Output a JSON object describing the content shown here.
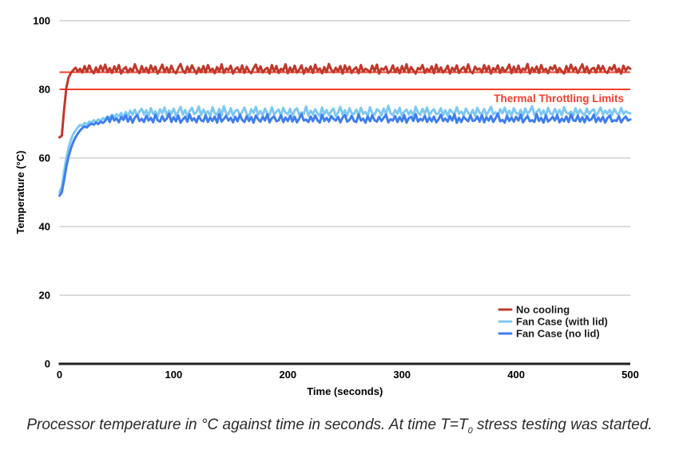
{
  "chart_data": {
    "type": "line",
    "title": "",
    "xlabel": "Time (seconds)",
    "ylabel": "Temperature (°C)",
    "xlim": [
      0,
      500
    ],
    "ylim": [
      0,
      100
    ],
    "xticks": [
      0,
      100,
      200,
      300,
      400,
      500
    ],
    "yticks": [
      0,
      20,
      40,
      60,
      80,
      100
    ],
    "grid": true,
    "legend_position": "inside-bottom-right",
    "x_step": 2,
    "thresholds": {
      "label": "Thermal Throttling Limits",
      "color": "#f2402c",
      "values": [
        80,
        85
      ]
    },
    "series": [
      {
        "name": "No cooling",
        "color": "#c0392b",
        "values": [
          66,
          66.5,
          74,
          80.5,
          83.5,
          84.8,
          85.6,
          86.3,
          85.2,
          86.0,
          84.9,
          86.8,
          85.1,
          87.0,
          85.5,
          84.7,
          86.4,
          85.0,
          86.9,
          85.4,
          87.2,
          85.0,
          86.2,
          84.8,
          86.7,
          85.3,
          87.1,
          84.6,
          85.9,
          86.5,
          84.9,
          86.1,
          85.2,
          87.3,
          85.6,
          84.7,
          86.8,
          85.1,
          86.3,
          84.8,
          87.0,
          85.4,
          86.6,
          84.6,
          85.8,
          87.2,
          85.0,
          86.4,
          84.9,
          86.9,
          85.3,
          84.7,
          86.2,
          87.4,
          85.5,
          84.8,
          86.6,
          85.1,
          87.0,
          85.7,
          84.6,
          86.3,
          85.0,
          86.8,
          84.9,
          87.1,
          85.4,
          86.0,
          84.7,
          86.5,
          85.2,
          87.3,
          84.8,
          86.1,
          85.6,
          86.9,
          84.6,
          85.9,
          86.4,
          85.0,
          87.0,
          84.8,
          86.6,
          85.3,
          84.7,
          86.2,
          87.2,
          85.1,
          86.7,
          84.9,
          85.8,
          86.3,
          84.6,
          87.1,
          85.2,
          86.8,
          84.8,
          86.0,
          85.5,
          87.3,
          84.7,
          86.4,
          85.0,
          86.9,
          84.9,
          85.7,
          87.0,
          84.6,
          86.2,
          85.3,
          86.7,
          84.8,
          87.2,
          85.5,
          86.1,
          84.7,
          86.5,
          85.0,
          87.4,
          85.8,
          84.9,
          86.3,
          85.2,
          86.8,
          84.6,
          87.0,
          85.4,
          86.6,
          84.8,
          85.9,
          86.4,
          84.7,
          87.1,
          85.1,
          86.0,
          85.6,
          84.9,
          86.9,
          85.3,
          87.2,
          84.6,
          86.1,
          85.7,
          86.6,
          84.8,
          85.4,
          87.0,
          85.0,
          86.3,
          84.7,
          86.8,
          85.2,
          87.3,
          84.9,
          86.5,
          85.5,
          84.6,
          86.2,
          85.8,
          87.1,
          84.8,
          86.0,
          85.3,
          86.7,
          84.7,
          87.2,
          85.1,
          86.4,
          84.9,
          85.6,
          86.9,
          84.6,
          86.3,
          85.4,
          87.0,
          84.8,
          85.9,
          86.5,
          85.0,
          87.3,
          85.2,
          84.7,
          86.6,
          85.7,
          86.1,
          84.9,
          87.1,
          85.3,
          86.8,
          84.6,
          86.2,
          85.5,
          87.0,
          84.8,
          86.4,
          85.1,
          85.9,
          87.2,
          84.7,
          86.6,
          85.0,
          86.9,
          84.9,
          86.1,
          85.6,
          87.4,
          84.6,
          86.3,
          85.2,
          86.7,
          84.8,
          87.1,
          85.4,
          86.0,
          84.7,
          86.5,
          85.8,
          87.0,
          84.9,
          86.2,
          85.3,
          84.6,
          86.8,
          85.1,
          87.2,
          85.5,
          86.4,
          84.8,
          86.0,
          87.3,
          85.0,
          86.6,
          84.7,
          85.9,
          86.3,
          84.9,
          87.0,
          85.4,
          86.8,
          85.2,
          84.8,
          86.4,
          85.7,
          87.1,
          85.0,
          86.1,
          84.6,
          86.9,
          85.5,
          86.5,
          86.0
        ]
      },
      {
        "name": "Fan Case (with lid)",
        "color": "#7ec8f3",
        "values": [
          50,
          51.5,
          56,
          60,
          63,
          65.3,
          66.9,
          68.0,
          68.9,
          69.6,
          69.4,
          70.2,
          69.8,
          70.6,
          70.3,
          71.0,
          70.5,
          71.3,
          70.8,
          71.6,
          71.2,
          72.1,
          71.7,
          72.6,
          71.9,
          72.8,
          72.2,
          73.1,
          72.0,
          73.4,
          72.4,
          73.8,
          72.6,
          74.1,
          72.3,
          73.5,
          74.3,
          72.7,
          73.9,
          72.2,
          74.5,
          72.8,
          73.6,
          72.1,
          74.2,
          73.0,
          74.7,
          72.5,
          73.8,
          72.9,
          74.4,
          72.3,
          73.5,
          74.9,
          72.6,
          74.0,
          72.2,
          73.7,
          74.6,
          72.8,
          73.3,
          75.0,
          72.5,
          74.1,
          72.9,
          73.6,
          72.2,
          74.8,
          73.1,
          72.6,
          74.3,
          72.4,
          75.1,
          73.0,
          72.7,
          74.5,
          72.3,
          73.8,
          74.0,
          72.5,
          73.4,
          74.7,
          72.8,
          72.2,
          74.2,
          73.1,
          74.9,
          72.6,
          73.7,
          72.4,
          74.4,
          73.0,
          72.5,
          74.8,
          72.7,
          73.5,
          74.1,
          72.3,
          74.6,
          73.2,
          72.8,
          74.3,
          72.1,
          73.9,
          74.5,
          72.6,
          73.3,
          72.9,
          75.0,
          72.4,
          73.8,
          72.7,
          74.2,
          73.0,
          72.3,
          74.7,
          72.8,
          74.0,
          72.5,
          73.6,
          74.4,
          72.2,
          73.2,
          74.9,
          72.6,
          73.9,
          72.4,
          74.5,
          73.1,
          72.8,
          74.1,
          72.5,
          74.6,
          72.9,
          73.4,
          72.3,
          74.8,
          73.0,
          72.6,
          74.2,
          73.7,
          72.4,
          74.4,
          72.8,
          75.2,
          73.1,
          72.5,
          74.0,
          72.9,
          74.6,
          72.3,
          73.5,
          74.1,
          72.7,
          73.8,
          72.2,
          74.9,
          73.3,
          72.6,
          74.3,
          72.9,
          74.7,
          72.4,
          73.6,
          74.2,
          72.8,
          73.0,
          74.5,
          72.5,
          73.9,
          72.2,
          74.1,
          73.4,
          72.7,
          74.8,
          72.9,
          73.5,
          72.4,
          74.4,
          73.1,
          72.6,
          74.0,
          72.3,
          74.6,
          73.2,
          72.8,
          74.3,
          72.5,
          73.7,
          74.9,
          72.7,
          73.3,
          72.2,
          74.2,
          73.0,
          74.7,
          72.6,
          73.8,
          72.4,
          74.5,
          73.1,
          72.8,
          74.0,
          72.3,
          74.4,
          72.9,
          73.6,
          75.1,
          72.5,
          73.4,
          74.2,
          72.6,
          73.9,
          72.2,
          74.6,
          73.0,
          72.7,
          74.3,
          72.8,
          74.0,
          72.4,
          74.8,
          73.2,
          72.9,
          73.5,
          72.3,
          74.5,
          72.6,
          74.1,
          73.0,
          72.5,
          74.4,
          72.8,
          73.7,
          74.2,
          72.4,
          73.3,
          74.7,
          72.7,
          73.8,
          72.9,
          74.0,
          72.5,
          74.3,
          73.1,
          72.6,
          74.6,
          72.8,
          73.6,
          73.2,
          73.0
        ]
      },
      {
        "name": "Fan Case (no lid)",
        "color": "#3e7ef0",
        "values": [
          49,
          50,
          53.5,
          57.5,
          60.5,
          62.8,
          64.6,
          66.0,
          67.1,
          68.0,
          68.7,
          69.2,
          68.9,
          69.6,
          70.0,
          69.7,
          70.3,
          69.9,
          70.6,
          70.2,
          70.8,
          71.9,
          70.5,
          72.2,
          70.9,
          71.6,
          70.4,
          72.0,
          71.1,
          72.4,
          70.6,
          72.1,
          70.3,
          71.8,
          72.5,
          70.8,
          71.4,
          70.5,
          72.3,
          70.9,
          71.7,
          70.4,
          72.6,
          71.0,
          70.6,
          72.2,
          70.8,
          71.5,
          72.9,
          70.5,
          71.9,
          70.7,
          72.4,
          70.3,
          71.2,
          72.0,
          70.6,
          72.7,
          70.9,
          71.6,
          70.4,
          72.2,
          71.0,
          70.7,
          72.5,
          70.5,
          71.8,
          70.8,
          72.1,
          70.3,
          72.8,
          70.6,
          71.4,
          72.3,
          70.9,
          71.7,
          70.4,
          72.0,
          70.7,
          72.6,
          71.1,
          70.5,
          72.2,
          70.8,
          71.9,
          70.3,
          72.4,
          71.3,
          70.6,
          72.0,
          70.9,
          72.7,
          70.4,
          71.6,
          72.1,
          70.7,
          71.0,
          72.5,
          70.5,
          71.8,
          70.8,
          72.3,
          70.6,
          72.0,
          70.4,
          71.5,
          72.8,
          70.9,
          71.2,
          70.5,
          72.1,
          70.7,
          72.4,
          71.0,
          70.3,
          72.6,
          70.8,
          71.7,
          70.6,
          72.2,
          71.4,
          70.9,
          72.0,
          70.4,
          71.8,
          72.5,
          70.6,
          71.1,
          72.3,
          70.8,
          70.5,
          72.7,
          70.9,
          71.5,
          70.3,
          72.1,
          70.7,
          72.4,
          71.0,
          70.6,
          72.0,
          70.8,
          71.7,
          72.6,
          70.4,
          71.3,
          70.9,
          72.2,
          70.5,
          71.9,
          70.7,
          72.5,
          70.3,
          71.6,
          72.0,
          70.8,
          72.8,
          70.6,
          71.4,
          70.9,
          72.3,
          70.5,
          71.8,
          70.7,
          72.1,
          70.4,
          71.2,
          72.6,
          70.8,
          71.5,
          70.6,
          72.2,
          70.9,
          72.7,
          70.3,
          71.7,
          70.5,
          72.0,
          71.3,
          70.7,
          72.4,
          70.8,
          71.0,
          72.1,
          70.6,
          72.5,
          70.4,
          71.9,
          70.9,
          72.2,
          70.5,
          71.6,
          72.9,
          70.7,
          71.1,
          70.3,
          72.3,
          70.8,
          71.8,
          70.6,
          72.0,
          70.9,
          72.6,
          70.4,
          71.4,
          72.2,
          70.7,
          71.0,
          70.5,
          72.8,
          70.8,
          71.7,
          70.3,
          72.4,
          70.6,
          71.2,
          72.0,
          70.9,
          72.5,
          70.4,
          71.5,
          70.7,
          72.1,
          70.5,
          72.7,
          71.0,
          70.8,
          72.3,
          70.6,
          71.9,
          70.4,
          72.2,
          70.9,
          71.3,
          72.6,
          70.5,
          71.8,
          70.7,
          72.0,
          70.3,
          71.6,
          72.4,
          70.6,
          71.0,
          70.8,
          72.2,
          70.4,
          71.4,
          72.1,
          70.9,
          71.2
        ]
      }
    ],
    "axis_color": "#212121",
    "grid_color": "#b7b7b7",
    "tick_color": "#000000",
    "legend_text_color": "#1c1c1c"
  },
  "caption": {
    "pre": "Processor temperature in °C against time in seconds. At time T=T",
    "sub": "0",
    "post": " stress testing was started."
  }
}
